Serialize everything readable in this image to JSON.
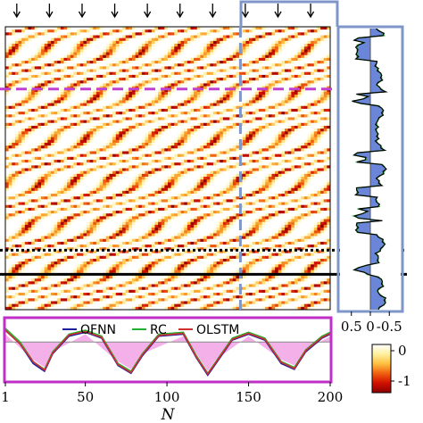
{
  "chart_data": [
    {
      "type": "heatmap",
      "panel": "main",
      "x_domain": [
        1,
        200
      ],
      "y_domain": [
        0,
        1
      ],
      "arrow_x_positions": [
        8,
        28,
        48,
        68,
        88,
        108,
        128,
        148,
        168,
        188
      ],
      "stripe_period": 20,
      "stripe_drift_per_unit_time": 36,
      "color_scale": [
        "#ffffff",
        "#fff0a0",
        "#ffc040",
        "#f06010",
        "#d01000",
        "#8a0000"
      ],
      "marker_lines": [
        {
          "name": "vertical-dashed",
          "x": 145,
          "style": "dashed",
          "color": "#7f96c8"
        },
        {
          "name": "magenta-dashed",
          "y": 0.22,
          "style": "dashed",
          "color": "#c040d0"
        },
        {
          "name": "black-dotted",
          "y": 0.79,
          "style": "dotted",
          "color": "#000000"
        },
        {
          "name": "black-solid",
          "y": 0.875,
          "style": "solid",
          "color": "#000000"
        }
      ]
    },
    {
      "type": "line",
      "panel": "bottom",
      "xlabel": "N",
      "xlim": [
        1,
        200
      ],
      "ylim": [
        -1,
        0.6
      ],
      "x_ticks": [
        1,
        50,
        100,
        150,
        200
      ],
      "x_tick_labels": [
        "1",
        "50",
        "100",
        "150",
        "200"
      ],
      "series": [
        {
          "name": "OFNN",
          "color": "#1e1e9e",
          "x": [
            1,
            10,
            18,
            25,
            30,
            40,
            50,
            60,
            70,
            78,
            85,
            95,
            110,
            118,
            125,
            130,
            140,
            150,
            160,
            170,
            178,
            185,
            195,
            200
          ],
          "values": [
            0.3,
            -0.05,
            -0.55,
            -0.75,
            -0.3,
            0.15,
            0.25,
            0.1,
            -0.6,
            -0.8,
            -0.35,
            0.15,
            0.2,
            -0.4,
            -0.85,
            -0.55,
            0.05,
            0.2,
            0.05,
            -0.55,
            -0.7,
            -0.25,
            0.1,
            0.2
          ]
        },
        {
          "name": "RC",
          "color": "#22b030",
          "x": [
            1,
            10,
            18,
            25,
            30,
            40,
            50,
            60,
            70,
            78,
            85,
            95,
            110,
            118,
            125,
            130,
            140,
            150,
            160,
            170,
            178,
            185,
            195,
            200
          ],
          "values": [
            0.35,
            0.0,
            -0.5,
            -0.7,
            -0.25,
            0.2,
            0.3,
            0.15,
            -0.55,
            -0.75,
            -0.3,
            0.2,
            0.25,
            -0.35,
            -0.8,
            -0.5,
            0.1,
            0.25,
            0.1,
            -0.5,
            -0.65,
            -0.2,
            0.15,
            0.25
          ]
        },
        {
          "name": "OLSTM",
          "color": "#d03030",
          "x": [
            1,
            10,
            18,
            25,
            30,
            40,
            50,
            60,
            70,
            78,
            85,
            95,
            110,
            118,
            125,
            130,
            140,
            150,
            160,
            170,
            178,
            185,
            195,
            200
          ],
          "values": [
            0.3,
            -0.05,
            -0.5,
            -0.72,
            -0.28,
            0.18,
            0.27,
            0.12,
            -0.58,
            -0.78,
            -0.32,
            0.17,
            0.22,
            -0.38,
            -0.82,
            -0.52,
            0.07,
            0.22,
            0.07,
            -0.52,
            -0.68,
            -0.22,
            0.12,
            0.22
          ]
        }
      ],
      "fill_region": {
        "color": "#f4b0e8",
        "x": [
          1,
          18,
          25,
          30,
          50,
          70,
          78,
          85,
          110,
          118,
          125,
          130,
          150,
          170,
          178,
          185,
          200
        ],
        "values": [
          0.2,
          -0.45,
          -0.65,
          -0.25,
          0.2,
          -0.5,
          -0.7,
          -0.3,
          0.15,
          -0.3,
          -0.75,
          -0.45,
          0.15,
          -0.45,
          -0.6,
          -0.2,
          0.15
        ]
      },
      "legend": [
        "OFNN",
        "RC",
        "OLSTM"
      ],
      "legend_placement": "top"
    },
    {
      "type": "line",
      "panel": "right",
      "orientation": "vertical",
      "x_ticks": [
        0.5,
        0,
        -0.5
      ],
      "x_tick_labels": [
        "0.5",
        "0",
        "-0.5"
      ],
      "xlim": [
        0.8,
        -0.8
      ],
      "series": [
        {
          "name": "series-green",
          "color": "#22b030"
        },
        {
          "name": "series-black",
          "color": "#000000"
        }
      ],
      "fill_color": "#6b85d8"
    },
    {
      "type": "heatmap",
      "panel": "colorbar",
      "ticks": [
        0,
        -1
      ],
      "tick_labels": [
        "0",
        "-1"
      ],
      "color_scale": [
        "#ffffff",
        "#fff0a0",
        "#ffc040",
        "#f06010",
        "#d01000",
        "#8a0000"
      ]
    }
  ]
}
